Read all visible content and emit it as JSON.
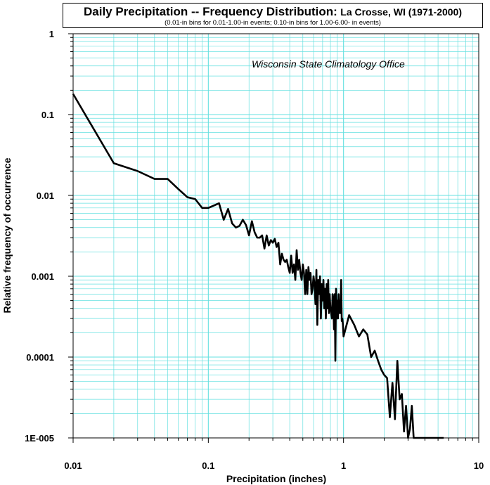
{
  "chart_data": {
    "type": "line",
    "title": "Daily Precipitation -- Frequency Distribution:",
    "title_location": "La Crosse, WI (1971-2000)",
    "subtitle": "(0.01-in bins for 0.01-1.00-in events;  0.10-in bins for 1.00-6.00- in events)",
    "annotation": "Wisconsin State Climatology Office",
    "xlabel": "Precipitation (inches)",
    "ylabel": "Relative frequency of occurrence",
    "x_scale": "log",
    "y_scale": "log",
    "xlim": [
      0.01,
      10
    ],
    "ylim": [
      1e-05,
      1
    ],
    "grid": true,
    "grid_color": "#66e0e0",
    "line_color": "#000000",
    "x_tick_labels": [
      "0.01",
      "0.1",
      "1",
      "10"
    ],
    "y_tick_labels": [
      "1",
      "0.1",
      "0.01",
      "0.001",
      "0.0001",
      "1E-005"
    ],
    "series": [
      {
        "x": [
          0.01,
          0.02,
          0.03,
          0.04,
          0.05,
          0.06,
          0.07,
          0.08,
          0.09,
          0.1,
          0.11,
          0.12,
          0.13,
          0.14,
          0.15,
          0.16,
          0.17,
          0.18,
          0.19,
          0.2,
          0.21,
          0.22,
          0.23,
          0.24,
          0.25,
          0.26,
          0.27,
          0.28,
          0.29,
          0.3,
          0.31,
          0.32,
          0.33,
          0.34,
          0.35,
          0.36,
          0.37,
          0.38,
          0.39,
          0.4,
          0.41,
          0.42,
          0.43,
          0.44,
          0.45,
          0.46,
          0.47,
          0.48,
          0.49,
          0.5,
          0.51,
          0.52,
          0.53,
          0.54,
          0.55,
          0.56,
          0.57,
          0.58,
          0.59,
          0.6,
          0.61,
          0.62,
          0.63,
          0.64,
          0.65,
          0.66,
          0.67,
          0.68,
          0.69,
          0.7,
          0.71,
          0.72,
          0.73,
          0.74,
          0.75,
          0.76,
          0.77,
          0.78,
          0.79,
          0.8,
          0.81,
          0.82,
          0.83,
          0.84,
          0.85,
          0.86,
          0.87,
          0.88,
          0.89,
          0.9,
          0.91,
          0.92,
          0.93,
          0.94,
          0.95,
          0.96,
          0.97,
          0.98,
          0.99,
          1.0,
          1.1,
          1.2,
          1.3,
          1.4,
          1.5,
          1.6,
          1.7,
          1.8,
          1.9,
          2.0,
          2.1,
          2.2,
          2.3,
          2.4,
          2.5,
          2.6,
          2.7,
          2.8,
          2.9,
          3.0,
          3.1,
          3.2,
          3.3,
          3.4,
          3.5,
          4.0,
          4.5,
          5.0,
          5.5
        ],
        "y": [
          0.18,
          0.025,
          0.02,
          0.016,
          0.016,
          0.012,
          0.0095,
          0.009,
          0.007,
          0.007,
          0.0075,
          0.008,
          0.005,
          0.0068,
          0.0045,
          0.004,
          0.0042,
          0.005,
          0.0043,
          0.0032,
          0.0048,
          0.0035,
          0.003,
          0.003,
          0.0032,
          0.0022,
          0.0032,
          0.0024,
          0.0028,
          0.0026,
          0.0029,
          0.0023,
          0.0026,
          0.0014,
          0.0019,
          0.0016,
          0.0015,
          0.0016,
          0.0013,
          0.0011,
          0.0018,
          0.0011,
          0.0014,
          0.0009,
          0.0021,
          0.0012,
          0.0016,
          0.0011,
          0.0009,
          0.0014,
          0.0011,
          0.0006,
          0.0012,
          0.0006,
          0.0013,
          0.0009,
          0.0011,
          0.0006,
          0.0007,
          0.001,
          0.0008,
          0.00045,
          0.0012,
          0.00025,
          0.0009,
          0.0006,
          0.001,
          0.0003,
          0.0008,
          0.0005,
          0.0009,
          0.0004,
          0.0007,
          0.0003,
          0.0008,
          0.0004,
          0.0009,
          0.00035,
          0.0006,
          0.0004,
          0.00035,
          0.0003,
          0.0006,
          0.0005,
          0.00022,
          0.0006,
          9e-05,
          0.0007,
          0.0003,
          0.0005,
          0.0003,
          0.0006,
          0.00035,
          0.0005,
          0.00035,
          0.0009,
          0.00028,
          0.0003,
          0.00025,
          0.00018,
          0.00033,
          0.00025,
          0.00018,
          0.00022,
          0.00019,
          0.0001,
          0.00012,
          9e-05,
          7e-05,
          6e-05,
          5.5e-05,
          1.8e-05,
          4.8e-05,
          1.7e-05,
          9e-05,
          3e-05,
          3.5e-05,
          1.2e-05,
          2.5e-05,
          1e-05,
          1.3e-05,
          2.5e-05,
          1e-05,
          1e-05,
          1e-05,
          1e-05,
          1e-05,
          1e-05,
          1e-05
        ]
      }
    ]
  }
}
